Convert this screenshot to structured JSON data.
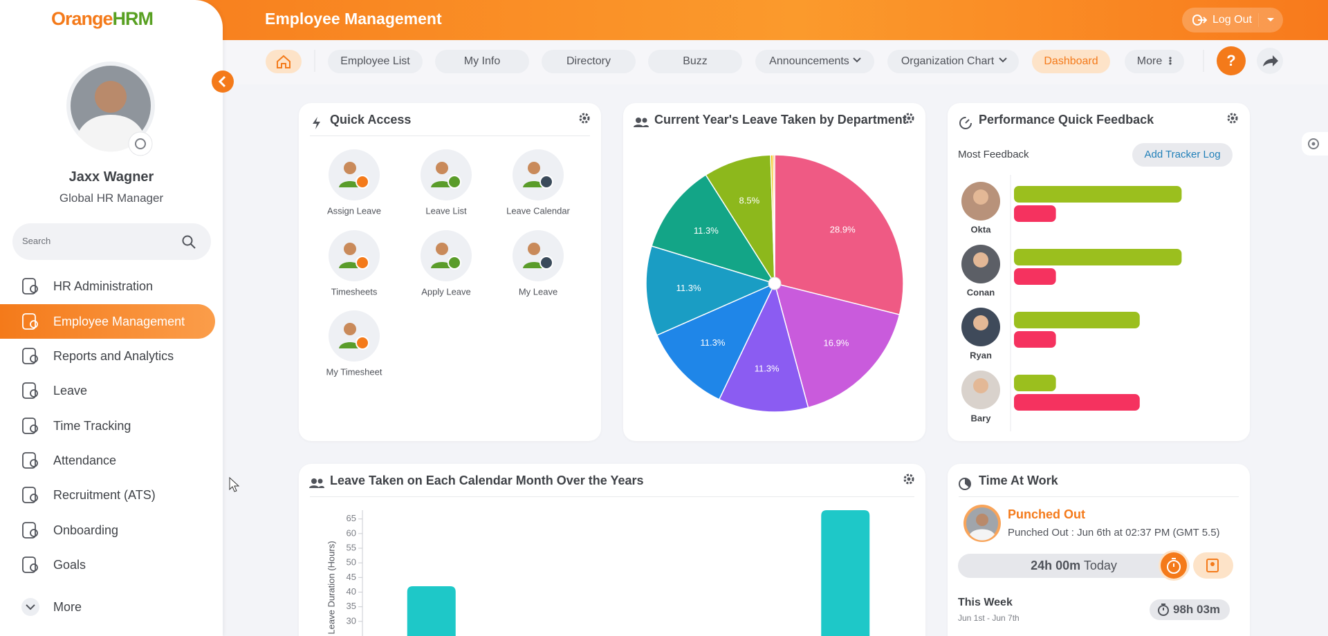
{
  "header": {
    "logo_orange": "Orange",
    "logo_hrm": "HRM",
    "title": "Employee Management",
    "logout": "Log Out"
  },
  "nav": {
    "items": [
      "Employee List",
      "My Info",
      "Directory",
      "Buzz",
      "Announcements",
      "Organization Chart",
      "Dashboard",
      "More"
    ]
  },
  "sidebar": {
    "name": "Jaxx Wagner",
    "role": "Global HR Manager",
    "search": "Search",
    "menu": [
      "HR Administration",
      "Employee Management",
      "Reports and Analytics",
      "Leave",
      "Time Tracking",
      "Attendance",
      "Recruitment (ATS)",
      "Onboarding",
      "Goals"
    ],
    "more": "More"
  },
  "quick_access": {
    "title": "Quick Access",
    "items": [
      "Assign Leave",
      "Leave List",
      "Leave Calendar",
      "Timesheets",
      "Apply Leave",
      "My Leave",
      "My Timesheet"
    ]
  },
  "leave_by_department": {
    "title": "Current Year's Leave Taken by Department",
    "chart_data": {
      "type": "pie",
      "categories": [
        null,
        null,
        null,
        null,
        null,
        null,
        null,
        null,
        null
      ],
      "values": [
        28.9,
        16.9,
        11.3,
        11.3,
        11.3,
        11.3,
        8.5,
        0.3,
        0.2
      ],
      "value_labels": [
        "28.9%",
        "16.9%",
        "11.3%",
        "11.3%",
        "11.3%",
        "11.3%",
        "8.5%",
        null,
        null
      ],
      "colors": [
        "#ef5a84",
        "#c95bdc",
        "#8b5cf2",
        "#1f86e8",
        "#1a9dc4",
        "#13a587",
        "#8db81c",
        "#f4c20d",
        "#f39a1e"
      ]
    }
  },
  "performance_feedback": {
    "title": "Performance Quick Feedback",
    "subtitle": "Most Feedback",
    "button": "Add Tracker Log",
    "chart_data": {
      "type": "hbar",
      "categories": [
        "Okta",
        "Conan",
        "Ryan",
        "Bary"
      ],
      "xlim": [
        0,
        5
      ],
      "series": [
        {
          "color": "#9bbf1e",
          "values": [
            4,
            4,
            3,
            1
          ]
        },
        {
          "color": "#f5325f",
          "values": [
            1,
            1,
            1,
            3
          ]
        }
      ]
    }
  },
  "leave_by_month": {
    "title": "Leave Taken on Each Calendar Month Over the Years",
    "chart_data": {
      "type": "bar",
      "y_label": "Leave Duration (Hours)",
      "categories": [
        null,
        null,
        null,
        null
      ],
      "values": [
        42,
        null,
        null,
        68
      ],
      "color": "#1ec8c8",
      "ylim": [
        25,
        68
      ],
      "yticks": [
        30,
        35,
        40,
        45,
        50,
        55,
        60,
        65
      ]
    }
  },
  "time_at_work": {
    "title": "Time At Work",
    "status": "Punched Out",
    "detail": "Punched Out : Jun 6th at 02:37 PM (GMT 5.5)",
    "today_time": "24h 00m",
    "today_label": "Today",
    "week_label": "This Week",
    "week_range": "Jun 1st - Jun 7th",
    "week_time": "98h 03m"
  }
}
